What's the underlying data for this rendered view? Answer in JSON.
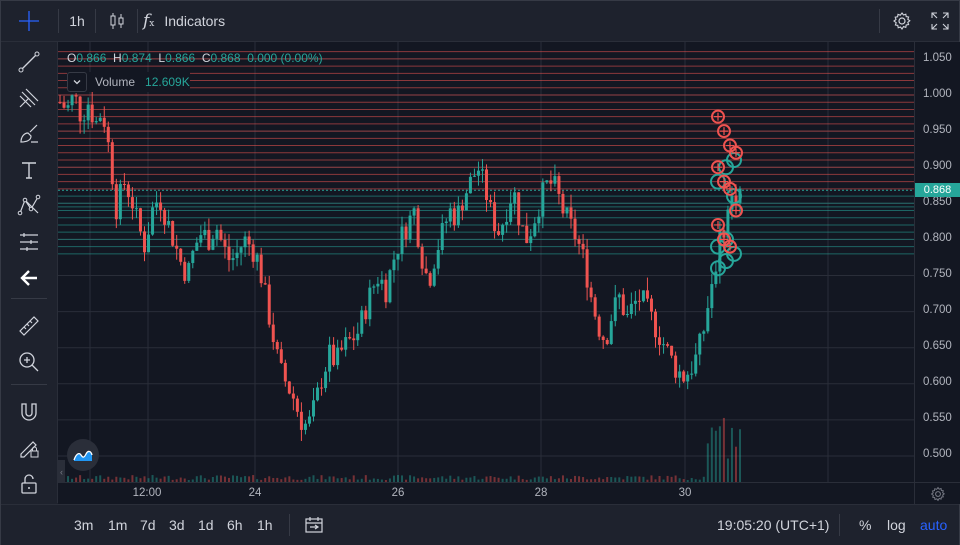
{
  "toolbar": {
    "interval": "1h",
    "indicators_label": "Indicators"
  },
  "legend": {
    "open_label": "O",
    "open": "0.866",
    "high_label": "H",
    "high": "0.874",
    "low_label": "L",
    "low": "0.866",
    "close_label": "C",
    "close": "0.868",
    "change": "0.000 (0.00%)"
  },
  "volume": {
    "label": "Volume",
    "value": "12.609K"
  },
  "price_axis": {
    "labels": [
      "1.050",
      "1.000",
      "0.950",
      "0.900",
      "0.850",
      "0.800",
      "0.750",
      "0.700",
      "0.650",
      "0.600",
      "0.550",
      "0.500"
    ],
    "last_price": "0.868"
  },
  "time_axis": {
    "labels": [
      "12:00",
      "24",
      "26",
      "28",
      "30"
    ]
  },
  "bottom": {
    "ranges": [
      "3m",
      "1m",
      "7d",
      "3d",
      "1d",
      "6h",
      "1h"
    ],
    "clock": "19:05:20 (UTC+1)",
    "percent": "%",
    "log": "log",
    "auto": "auto"
  },
  "colors": {
    "up": "#26a69a",
    "down": "#ef5350",
    "background": "#131722",
    "panel": "#1e222d",
    "accent": "#2962ff"
  },
  "chart_data": {
    "type": "candlestick",
    "interval": "1h",
    "x_ticks": [
      "12:00",
      "24",
      "26",
      "28",
      "30"
    ],
    "ylim": [
      0.48,
      1.08
    ],
    "ticks": [
      1.05,
      1.0,
      0.95,
      0.9,
      0.85,
      0.8,
      0.75,
      0.7,
      0.65,
      0.6,
      0.55,
      0.5
    ],
    "last_price": 0.868,
    "close_path": [
      0.99,
      0.98,
      1.0,
      0.97,
      0.99,
      0.96,
      0.98,
      0.92,
      0.84,
      0.88,
      0.86,
      0.82,
      0.79,
      0.84,
      0.86,
      0.83,
      0.8,
      0.77,
      0.75,
      0.79,
      0.81,
      0.8,
      0.82,
      0.79,
      0.77,
      0.78,
      0.8,
      0.79,
      0.77,
      0.72,
      0.67,
      0.62,
      0.6,
      0.58,
      0.55,
      0.54,
      0.57,
      0.61,
      0.64,
      0.63,
      0.65,
      0.66,
      0.67,
      0.7,
      0.73,
      0.75,
      0.73,
      0.77,
      0.8,
      0.82,
      0.84,
      0.78,
      0.74,
      0.78,
      0.81,
      0.84,
      0.83,
      0.86,
      0.88,
      0.9,
      0.87,
      0.83,
      0.81,
      0.84,
      0.87,
      0.82,
      0.8,
      0.83,
      0.86,
      0.88,
      0.87,
      0.84,
      0.82,
      0.8,
      0.77,
      0.72,
      0.68,
      0.66,
      0.7,
      0.72,
      0.69,
      0.71,
      0.72,
      0.7,
      0.68,
      0.66,
      0.64,
      0.62,
      0.61,
      0.62,
      0.64,
      0.68,
      0.74,
      0.79,
      0.83,
      0.86,
      0.868
    ],
    "resistance_lines": [
      1.06,
      1.05,
      1.04,
      1.03,
      1.02,
      1.01,
      1.0,
      0.99,
      0.98,
      0.97,
      0.96,
      0.95,
      0.94,
      0.93,
      0.92,
      0.91,
      0.9,
      0.89,
      0.88,
      0.87
    ],
    "support_lines": [
      0.86,
      0.85,
      0.845,
      0.84,
      0.83,
      0.82,
      0.81,
      0.8,
      0.79,
      0.78
    ],
    "buy_markers": [
      0.76,
      0.77,
      0.78,
      0.79,
      0.8,
      0.86,
      0.88,
      0.9,
      0.91
    ],
    "sell_markers": [
      0.97,
      0.95,
      0.93,
      0.92,
      0.9,
      0.88,
      0.87,
      0.84,
      0.82,
      0.8,
      0.79
    ]
  }
}
